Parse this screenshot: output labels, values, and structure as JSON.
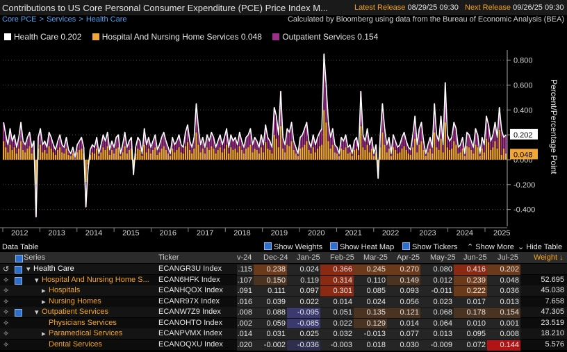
{
  "header": {
    "title": "Contributions to US Core Personal Consumer Expenditure (PCE) Price Index M...",
    "latest_label": "Latest Release",
    "latest_value": "08/29/25 09:30",
    "next_label": "Next Release",
    "next_value": "09/26/25 09:30"
  },
  "breadcrumb": [
    "Core PCE",
    "Services",
    "Health Care"
  ],
  "calc_note": "Calculated by Bloomberg using data from the Bureau of Economic Analysis (BEA)",
  "legend": [
    {
      "name": "Health Care",
      "value": "0.202",
      "color": "#ffffff"
    },
    {
      "name": "Hospital And Nursing Home Services",
      "value": "0.048",
      "color": "#f0a63a"
    },
    {
      "name": "Outpatient Services",
      "value": "0.154",
      "color": "#9b2f8a"
    }
  ],
  "chart_data": {
    "type": "bar",
    "ylabel": "Percent/Percentage Point",
    "yticks": [
      "0.800",
      "0.600",
      "0.400",
      "0.200",
      "0.000",
      "-0.200",
      "-0.400"
    ],
    "ylim": [
      -0.48,
      0.86
    ],
    "xticks": [
      "2012",
      "2013",
      "2014",
      "2015",
      "2016",
      "2017",
      "2018",
      "2019",
      "2020",
      "2021",
      "2022",
      "2023",
      "2024",
      "2025"
    ],
    "last_values": {
      "health_care": "0.202",
      "hospital": "0.048"
    },
    "series": [
      {
        "name": "Health Care",
        "style": "line",
        "color": "#ffffff",
        "values": [
          0.3,
          0.2,
          0.12,
          0.25,
          0.15,
          0.2,
          0.1,
          0.18,
          0.3,
          0.15,
          0.12,
          0.18,
          0.22,
          0.1,
          0.15,
          -0.46,
          0.18,
          0.25,
          0.12,
          0.15,
          0.1,
          0.22,
          0.18,
          0.12,
          0.08,
          0.15,
          0.2,
          0.12,
          0.1,
          0.18,
          0.08,
          0.05,
          0.1,
          0.02,
          0.12,
          0.15,
          0.18,
          0.1,
          -0.38,
          -0.08,
          0.08,
          0.12,
          0.1,
          0.18,
          0.05,
          0.12,
          0.2,
          0.15,
          0.22,
          0.08,
          0.15,
          0.1,
          0.18,
          0.2,
          0.05,
          0.12,
          0.22,
          0.1,
          0.15,
          0.18,
          -0.12,
          0.1,
          0.18,
          0.15,
          0.05,
          0.25,
          0.12,
          0.18,
          0.1,
          0.15,
          0.2,
          0.08,
          0.12,
          0.18,
          0.22,
          0.15,
          0.1,
          0.05,
          0.18,
          0.12,
          0.15,
          0.2,
          0.12,
          0.1,
          0.22,
          0.28,
          0.15,
          0.1,
          0.18,
          0.45,
          0.25,
          0.12,
          0.18,
          0.1,
          0.2,
          0.15,
          0.22,
          0.18,
          0.1,
          0.15,
          0.2,
          0.12,
          0.18,
          0.25,
          0.1,
          0.2,
          0.15,
          0.18,
          0.12,
          0.22,
          0.15,
          0.1,
          0.18,
          0.2,
          0.25,
          0.12,
          0.18,
          0.15,
          0.1,
          0.2,
          0.12,
          0.28,
          0.18,
          0.15,
          0.1,
          0.42,
          0.35,
          0.2,
          0.55,
          0.18,
          0.12,
          0.25,
          0.22,
          0.3,
          0.15,
          0.1,
          0.05,
          0.18,
          0.2,
          0.25,
          0.3,
          0.15,
          0.1,
          0.2,
          0.12,
          0.18,
          0.22,
          0.25,
          0.85,
          0.6,
          0.3,
          0.18,
          0.25,
          0.12,
          0.1,
          0.05,
          0.18,
          0.15,
          0.2,
          0.1,
          0.12,
          0.05,
          0.15,
          0.18,
          0.08,
          0.55,
          0.2,
          0.15,
          0.25,
          0.12,
          0.18,
          0.05,
          0.12,
          -0.15,
          0.2,
          0.45,
          0.25,
          0.12,
          0.18,
          0.05,
          0.2,
          0.15,
          0.1,
          0.12,
          0.18,
          0.22,
          0.15,
          0.1,
          0.08,
          0.2,
          0.35,
          0.12,
          0.25,
          0.3,
          0.15,
          0.05,
          0.12,
          0.18,
          0.1,
          0.45,
          0.2,
          0.15,
          0.35,
          0.12,
          0.62,
          0.2,
          0.15,
          0.18,
          0.3,
          0.25,
          0.1,
          0.12,
          0.18,
          0.05,
          0.22,
          0.2,
          0.15,
          0.1,
          0.25,
          0.2,
          0.05,
          0.18,
          0.12,
          0.35,
          0.28,
          0.15,
          0.2,
          0.3,
          0.18,
          0.42,
          0.24,
          0.18,
          0.2
        ]
      },
      {
        "name": "Hospital And Nursing Home Services",
        "style": "bar",
        "color": "#f0a63a",
        "values": [
          0.15,
          0.1,
          0.06,
          0.12,
          0.08,
          0.1,
          0.05,
          0.09,
          0.15,
          0.08,
          0.06,
          0.09,
          0.11,
          0.05,
          0.08,
          -0.2,
          0.09,
          0.12,
          0.06,
          0.08,
          0.05,
          0.11,
          0.09,
          0.06,
          0.04,
          0.08,
          0.1,
          0.06,
          0.05,
          0.09,
          0.04,
          0.03,
          0.05,
          0.01,
          0.06,
          0.08,
          0.09,
          0.05,
          -0.18,
          -0.04,
          0.04,
          0.06,
          0.05,
          0.09,
          0.03,
          0.06,
          0.1,
          0.08,
          0.11,
          0.04,
          0.08,
          0.05,
          0.09,
          0.1,
          0.03,
          0.06,
          0.11,
          0.05,
          0.08,
          0.09,
          -0.06,
          0.05,
          0.09,
          0.08,
          0.03,
          0.12,
          0.06,
          0.09,
          0.05,
          0.08,
          0.1,
          0.04,
          0.06,
          0.09,
          0.11,
          0.08,
          0.05,
          0.03,
          0.09,
          0.06,
          0.08,
          0.1,
          0.06,
          0.05,
          0.11,
          0.14,
          0.08,
          0.05,
          0.09,
          0.22,
          0.12,
          0.06,
          0.09,
          0.05,
          0.1,
          0.08,
          0.11,
          0.09,
          0.05,
          0.08,
          0.1,
          0.06,
          0.09,
          0.12,
          0.05,
          0.1,
          0.08,
          0.09,
          0.06,
          0.11,
          0.08,
          0.05,
          0.09,
          0.1,
          0.12,
          0.06,
          0.09,
          0.08,
          0.05,
          0.1,
          0.06,
          0.14,
          0.09,
          0.08,
          0.05,
          0.2,
          0.17,
          0.1,
          0.27,
          0.09,
          0.06,
          0.12,
          0.11,
          0.15,
          0.08,
          0.05,
          0.03,
          0.09,
          0.1,
          0.12,
          0.15,
          0.08,
          0.05,
          0.1,
          0.06,
          0.09,
          0.11,
          0.12,
          0.4,
          0.3,
          0.15,
          0.09,
          0.12,
          0.06,
          0.05,
          0.03,
          0.09,
          0.08,
          0.1,
          0.05,
          0.06,
          0.03,
          0.08,
          0.09,
          0.04,
          0.27,
          0.1,
          0.08,
          0.12,
          0.06,
          0.09,
          0.03,
          0.06,
          -0.08,
          0.1,
          0.22,
          0.12,
          0.06,
          0.09,
          0.03,
          0.1,
          0.08,
          0.05,
          0.06,
          0.09,
          0.11,
          0.08,
          0.05,
          0.04,
          0.1,
          0.17,
          0.06,
          0.12,
          0.15,
          0.08,
          0.03,
          0.06,
          0.09,
          0.05,
          0.22,
          0.1,
          0.08,
          0.17,
          0.06,
          0.3,
          0.1,
          0.08,
          0.09,
          0.15,
          0.12,
          0.05,
          0.06,
          0.09,
          0.03,
          0.11,
          0.1,
          0.08,
          0.05,
          0.12,
          0.1,
          0.03,
          0.09,
          0.06,
          0.17,
          0.14,
          0.08,
          0.1,
          0.15,
          0.09,
          0.24,
          0.04,
          0.09,
          0.05
        ]
      },
      {
        "name": "Outpatient Services",
        "style": "bar",
        "color": "#9b2f8a",
        "values": [
          0.15,
          0.1,
          0.06,
          0.13,
          0.07,
          0.1,
          0.05,
          0.09,
          0.15,
          0.07,
          0.06,
          0.09,
          0.11,
          0.05,
          0.07,
          -0.26,
          0.09,
          0.13,
          0.06,
          0.07,
          0.05,
          0.11,
          0.09,
          0.06,
          0.04,
          0.07,
          0.1,
          0.06,
          0.05,
          0.09,
          0.04,
          0.02,
          0.05,
          0.01,
          0.06,
          0.07,
          0.09,
          0.05,
          -0.2,
          -0.04,
          0.04,
          0.06,
          0.05,
          0.09,
          0.02,
          0.06,
          0.1,
          0.07,
          0.11,
          0.04,
          0.07,
          0.05,
          0.09,
          0.1,
          0.02,
          0.06,
          0.11,
          0.05,
          0.07,
          0.09,
          -0.06,
          0.05,
          0.09,
          0.07,
          0.02,
          0.13,
          0.06,
          0.09,
          0.05,
          0.07,
          0.1,
          0.04,
          0.06,
          0.09,
          0.11,
          0.07,
          0.05,
          0.02,
          0.09,
          0.06,
          0.07,
          0.1,
          0.06,
          0.05,
          0.11,
          0.14,
          0.07,
          0.05,
          0.09,
          0.23,
          0.13,
          0.06,
          0.09,
          0.05,
          0.1,
          0.07,
          0.11,
          0.09,
          0.05,
          0.07,
          0.1,
          0.06,
          0.09,
          0.13,
          0.05,
          0.1,
          0.07,
          0.09,
          0.06,
          0.11,
          0.07,
          0.05,
          0.09,
          0.1,
          0.13,
          0.06,
          0.09,
          0.07,
          0.05,
          0.1,
          0.06,
          0.14,
          0.09,
          0.07,
          0.05,
          0.22,
          0.18,
          0.1,
          0.28,
          0.09,
          0.06,
          0.13,
          0.11,
          0.15,
          0.07,
          0.05,
          0.02,
          0.09,
          0.1,
          0.13,
          0.15,
          0.07,
          0.05,
          0.1,
          0.06,
          0.09,
          0.11,
          0.13,
          0.45,
          0.3,
          0.15,
          0.09,
          0.13,
          0.06,
          0.05,
          0.02,
          0.09,
          0.07,
          0.1,
          0.05,
          0.06,
          0.02,
          0.07,
          0.09,
          0.04,
          0.28,
          0.1,
          0.07,
          0.13,
          0.06,
          0.09,
          0.02,
          0.06,
          -0.07,
          0.1,
          0.23,
          0.13,
          0.06,
          0.09,
          0.02,
          0.1,
          0.07,
          0.05,
          0.06,
          0.09,
          0.11,
          0.07,
          0.05,
          0.04,
          0.1,
          0.18,
          0.06,
          0.13,
          0.15,
          0.07,
          0.02,
          0.06,
          0.09,
          0.05,
          0.23,
          0.1,
          0.07,
          0.18,
          0.06,
          0.32,
          0.1,
          0.07,
          0.09,
          0.15,
          0.13,
          0.05,
          0.06,
          0.09,
          0.02,
          0.11,
          0.1,
          0.07,
          0.05,
          0.13,
          0.1,
          0.02,
          0.09,
          0.06,
          0.18,
          0.14,
          0.07,
          0.1,
          0.15,
          0.09,
          0.18,
          0.2,
          0.09,
          0.15
        ]
      }
    ]
  },
  "table": {
    "title": "Data Table",
    "buttons": {
      "weights": "Show Weights",
      "heatmap": "Show Heat Map",
      "tickers": "Show Tickers",
      "more": "Show More",
      "hide": "Hide Table"
    },
    "headers": {
      "series": "Series",
      "ticker": "Ticker",
      "cols": [
        "v-24",
        "Dec-24",
        "Jan-25",
        "Feb-25",
        "Mar-25",
        "Apr-25",
        "May-25",
        "Jun-25",
        "Jul-25"
      ],
      "weight": "Weight ↓"
    },
    "rows": [
      {
        "name": "Health Care",
        "ticker": "ECANGR3U Index",
        "vals": [
          ".115",
          "0.238",
          "0.024",
          "0.366",
          "0.245",
          "0.270",
          "0.080",
          "0.416",
          "0.202"
        ],
        "weight": ""
      },
      {
        "name": "Hospital And Nursing Home S...",
        "ticker": "ECAN6HFK Index",
        "vals": [
          ".107",
          "0.150",
          "0.119",
          "0.314",
          "0.110",
          "0.149",
          "0.012",
          "0.239",
          "0.048"
        ],
        "weight": "52.695"
      },
      {
        "name": "Hospitals",
        "ticker": "ECANHQOX Index",
        "vals": [
          ".091",
          "0.111",
          "0.097",
          "0.301",
          "0.085",
          "0.093",
          "-0.011",
          "0.222",
          "0.036"
        ],
        "weight": "45.038"
      },
      {
        "name": "Nursing Homes",
        "ticker": "ECANR97X Index",
        "vals": [
          ".016",
          "0.039",
          "0.022",
          "0.014",
          "0.024",
          "0.056",
          "0.023",
          "0.017",
          "0.013"
        ],
        "weight": "7.658"
      },
      {
        "name": "Outpatient Services",
        "ticker": "ECANW7Z9 Index",
        "vals": [
          ".008",
          "0.088",
          "-0.095",
          "0.051",
          "0.135",
          "0.121",
          "0.068",
          "0.178",
          "0.154"
        ],
        "weight": "47.305"
      },
      {
        "name": "Physicians Services",
        "ticker": "ECANOHTO Index",
        "vals": [
          ".002",
          "0.059",
          "-0.085",
          "0.022",
          "0.129",
          "0.014",
          "0.064",
          "0.010",
          "0.001"
        ],
        "weight": "23.519"
      },
      {
        "name": "Paramedical Services",
        "ticker": "ECANPVMX Index",
        "vals": [
          ".014",
          "0.031",
          "0.025",
          "0.032",
          "-0.013",
          "0.077",
          "0.013",
          "0.095",
          "0.008"
        ],
        "weight": "18.210"
      },
      {
        "name": "Dental Services",
        "ticker": "ECANOQXU Index",
        "vals": [
          ".020",
          "-0.002",
          "-0.036",
          "-0.003",
          "0.018",
          "0.030",
          "-0.009",
          "0.072",
          "0.144"
        ],
        "weight": "5.576"
      }
    ]
  }
}
